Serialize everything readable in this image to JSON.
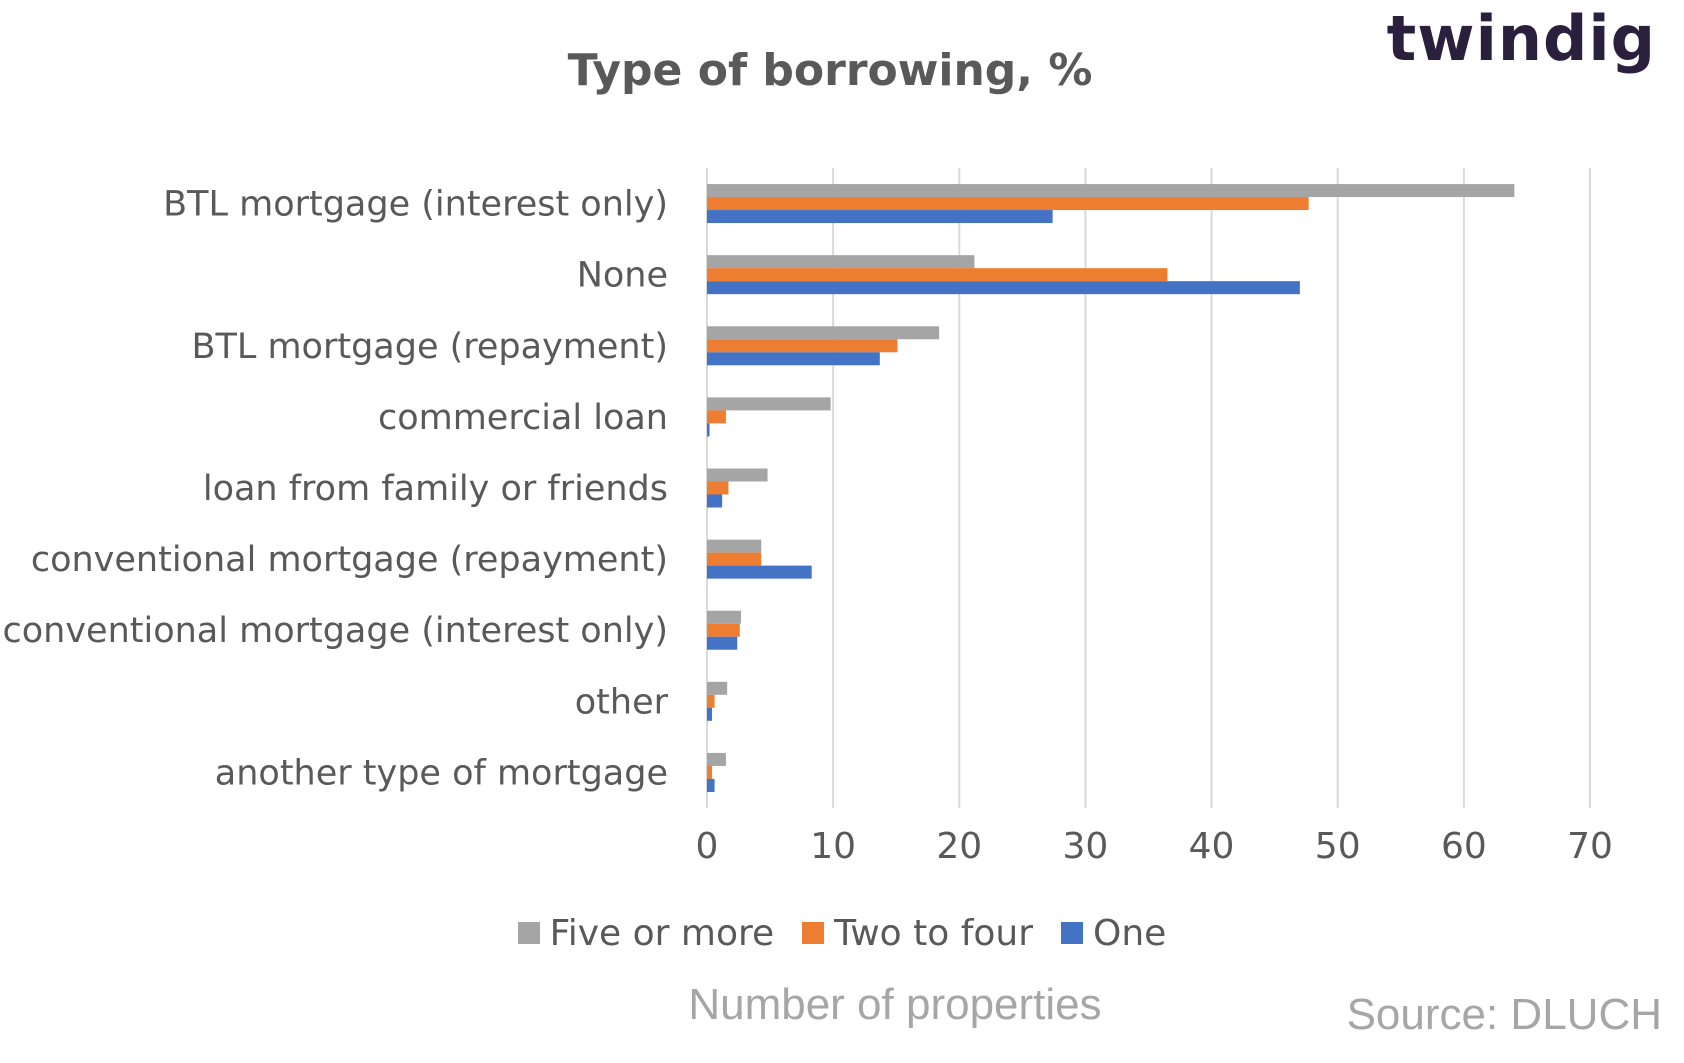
{
  "logo": {
    "text": "twindig",
    "accent_color": "#f4a021",
    "color": "#2a1f3d"
  },
  "source": "Source: DLUCH",
  "chart_data": {
    "type": "bar",
    "orientation": "horizontal",
    "title": "Type of borrowing, %",
    "xlabel": "Number of properties",
    "ylabel": "",
    "xlim": [
      0,
      70
    ],
    "xticks": [
      0,
      10,
      20,
      30,
      40,
      50,
      60,
      70
    ],
    "grid": "vertical",
    "legend_position": "bottom",
    "categories": [
      "BTL mortgage (interest only)",
      "None",
      "BTL mortgage (repayment)",
      "commercial loan",
      "loan from family or friends",
      "conventional mortgage (repayment)",
      "conventional mortgage (interest only)",
      "other",
      "another type of mortgage"
    ],
    "series": [
      {
        "name": "Five or more",
        "color": "#a5a5a5",
        "values": [
          64,
          21.2,
          18.4,
          9.8,
          4.8,
          4.3,
          2.7,
          1.6,
          1.5
        ]
      },
      {
        "name": "Two to four",
        "color": "#ed7d31",
        "values": [
          47.7,
          36.5,
          15.1,
          1.5,
          1.7,
          4.3,
          2.6,
          0.6,
          0.4
        ]
      },
      {
        "name": "One",
        "color": "#4472c4",
        "values": [
          27.4,
          47,
          13.7,
          0.2,
          1.2,
          8.3,
          2.4,
          0.4,
          0.6
        ]
      }
    ]
  }
}
